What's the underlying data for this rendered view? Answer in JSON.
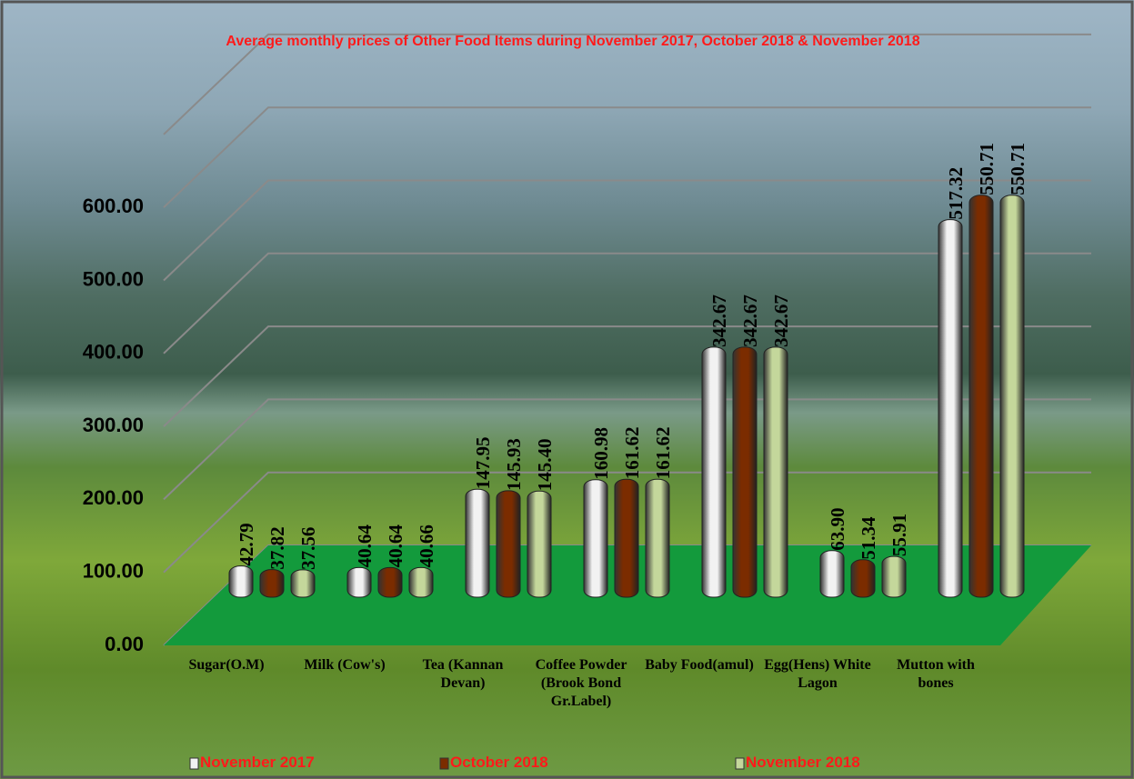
{
  "chart_data": {
    "type": "bar3d",
    "title": "Average monthly prices of Other Food Items during November 2017, October  2018 & November 2018",
    "categories": [
      "Sugar(O.M)",
      "Milk (Cow's)",
      "Tea (Kannan Devan)",
      "Coffee Powder (Brook Bond Gr.Label)",
      "Baby Food(amul)",
      "Egg(Hens) White Lagon",
      "Mutton with bones"
    ],
    "series": [
      {
        "name": "November 2017",
        "color": "#f2f2f2",
        "values": [
          42.79,
          40.64,
          147.95,
          160.98,
          342.67,
          63.9,
          517.32
        ],
        "value_labels": [
          "42.79",
          "40.64",
          "147.95",
          "160.98",
          "342.67",
          "63.90",
          "517.32"
        ]
      },
      {
        "name": "October  2018",
        "color": "#7b2c00",
        "values": [
          37.82,
          40.64,
          145.93,
          161.62,
          342.67,
          51.34,
          550.71
        ],
        "value_labels": [
          "37.82",
          "40.64",
          "145.93",
          "161.62",
          "342.67",
          "51.34",
          "550.71"
        ]
      },
      {
        "name": "November 2018",
        "color": "#c4d79b",
        "values": [
          37.56,
          40.66,
          145.4,
          161.62,
          342.67,
          55.91,
          550.71
        ],
        "value_labels": [
          "37.56",
          "40.66",
          "145.40",
          "161.62",
          "342.67",
          "55.91",
          "550.71"
        ]
      }
    ],
    "ylim": [
      0,
      700
    ],
    "yticks": [
      {
        "value": 0,
        "label": "0.00"
      },
      {
        "value": 100,
        "label": "100.00"
      },
      {
        "value": 200,
        "label": "200.00"
      },
      {
        "value": 300,
        "label": "300.00"
      },
      {
        "value": 400,
        "label": "400.00"
      },
      {
        "value": 500,
        "label": "500.00"
      },
      {
        "value": 600,
        "label": "600.00"
      }
    ],
    "grid": true,
    "legend": "bottom"
  }
}
